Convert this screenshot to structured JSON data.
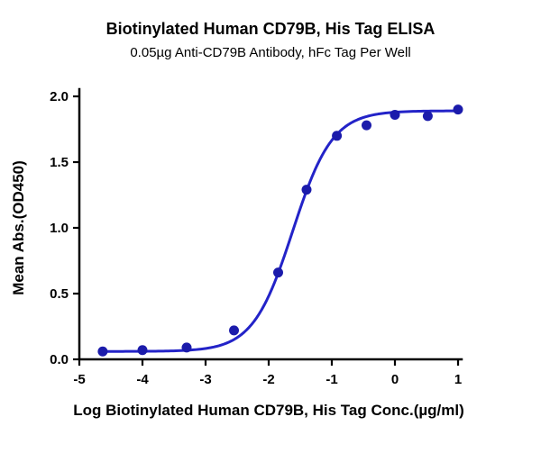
{
  "page": {
    "title": "Biotinylated Human CD79B, His Tag ELISA",
    "subtitle": "0.05µg Anti-CD79B Antibody, hFc Tag Per Well"
  },
  "chart_data": {
    "type": "scatter",
    "title": "Biotinylated Human CD79B, His Tag ELISA",
    "subtitle": "0.05µg Anti-CD79B Antibody, hFc Tag Per Well",
    "xlabel": "Log Biotinylated Human CD79B, His Tag Conc.(µg/ml)",
    "ylabel": "Mean Abs.(OD450)",
    "xlim": [
      -5,
      1
    ],
    "ylim": [
      0,
      2
    ],
    "xticks": [
      -5,
      -4,
      -3,
      -2,
      -1,
      0,
      1
    ],
    "yticks": [
      0,
      0.5,
      1,
      1.5,
      2
    ],
    "ytick_labels": [
      "0.0",
      "0.5",
      "1.0",
      "1.5",
      "2.0"
    ],
    "grid": false,
    "legend": "none",
    "colors": {
      "curve": "#2323c8",
      "point": "#1b1bab"
    },
    "x": [
      -4.63,
      -4.0,
      -3.3,
      -2.55,
      -1.85,
      -1.4,
      -0.92,
      -0.45,
      0.0,
      0.52,
      1.0
    ],
    "y": [
      0.06,
      0.07,
      0.09,
      0.22,
      0.66,
      1.29,
      1.7,
      1.78,
      1.86,
      1.85,
      1.9
    ],
    "fit": {
      "model": "4PL",
      "bottom": 0.06,
      "top": 1.89,
      "logEC50": -1.62,
      "hill": 1.38,
      "x_start": -4.63,
      "x_end": 1.0
    }
  }
}
